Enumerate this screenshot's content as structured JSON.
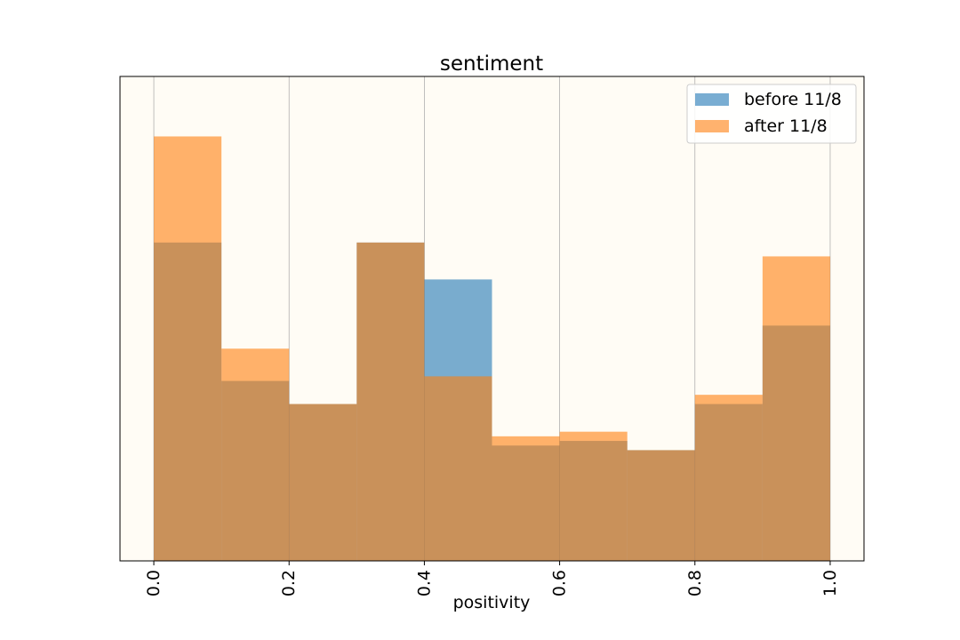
{
  "chart_data": {
    "type": "bar",
    "title": "sentiment",
    "xlabel": "positivity",
    "ylabel": "",
    "xlim": [
      -0.05,
      1.05
    ],
    "xticks": [
      "0.0",
      "0.2",
      "0.4",
      "0.6",
      "0.8",
      "1.0"
    ],
    "bin_edges": [
      0.0,
      0.1,
      0.2,
      0.3,
      0.4,
      0.5,
      0.6,
      0.7,
      0.8,
      0.9,
      1.0
    ],
    "grid": "x",
    "legend_position": "top-right",
    "series": [
      {
        "name": "before 11/8",
        "color": "#1f77b4",
        "values": [
          0.69,
          0.39,
          0.34,
          0.69,
          0.61,
          0.25,
          0.26,
          0.24,
          0.34,
          0.51
        ]
      },
      {
        "name": "after 11/8",
        "color": "#ff7f0e",
        "values": [
          0.92,
          0.46,
          0.34,
          0.69,
          0.4,
          0.27,
          0.28,
          0.24,
          0.36,
          0.66
        ]
      }
    ],
    "background": "#fffcf5"
  }
}
